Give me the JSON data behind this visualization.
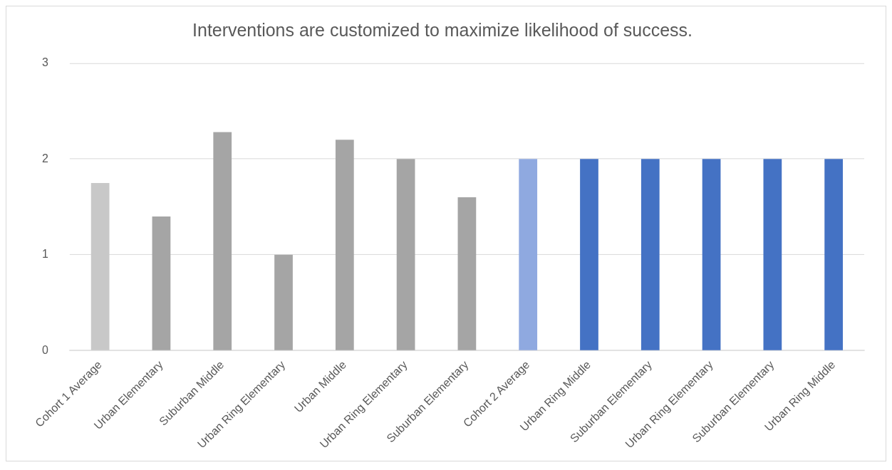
{
  "chart_data": {
    "type": "bar",
    "title": "Interventions are customized to maximize likelihood of success.",
    "categories": [
      "Cohort 1 Average",
      "Urban Elementary",
      "Suburban Middle",
      "Urban Ring Elementary",
      "Urban Middle",
      "Urban Ring Elementary",
      "Suburban Elementary",
      "Cohort 2 Average",
      "Urban Ring Middle",
      "Suburban Elementary",
      "Urban Ring Elementary",
      "Suburban Elementary",
      "Urban Ring Middle"
    ],
    "values": [
      1.75,
      1.4,
      2.28,
      1,
      2.2,
      2,
      1.6,
      2,
      2,
      2,
      2,
      2,
      2
    ],
    "colors": [
      "#c8c8c8",
      "#a5a5a5",
      "#a5a5a5",
      "#a5a5a5",
      "#a5a5a5",
      "#a5a5a5",
      "#a5a5a5",
      "#8fa9e0",
      "#4472c4",
      "#4472c4",
      "#4472c4",
      "#4472c4",
      "#4472c4"
    ],
    "ylim": [
      0,
      3
    ],
    "yticks": [
      0,
      1,
      2,
      3
    ],
    "grid": "y",
    "legend": false
  }
}
